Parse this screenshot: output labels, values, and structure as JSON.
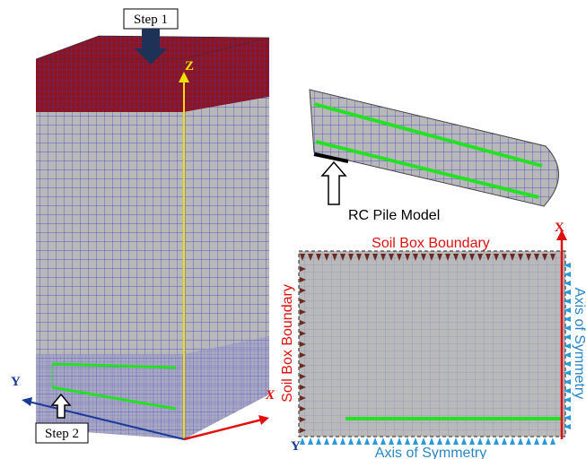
{
  "left_model": {
    "step1": "Step 1",
    "step2": "Step 2",
    "axis_z": "Z",
    "axis_y": "Y",
    "axis_x": "X"
  },
  "pile_model": {
    "label": "RC Pile Model"
  },
  "section": {
    "top_label": "Soil Box Boundary",
    "left_label": "Soil Box Boundary",
    "right_label": "Axis of Symmetry",
    "bottom_label": "Axis of Symmetry",
    "axis_x": "X",
    "axis_y": "Y"
  }
}
